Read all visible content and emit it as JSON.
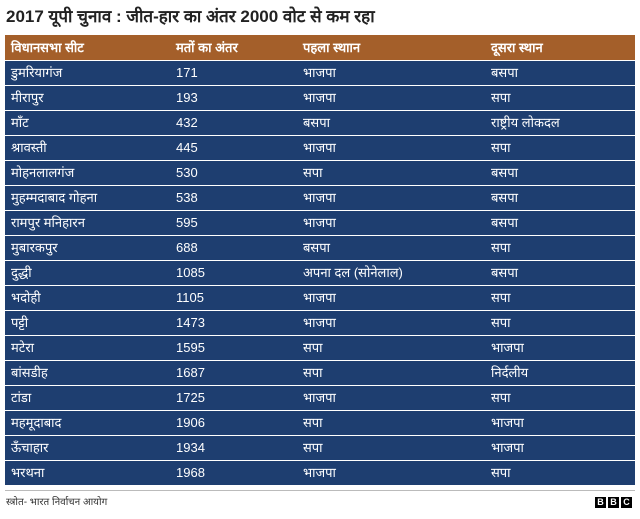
{
  "colors": {
    "header_bg": "#a45f2a",
    "row_bg": "#1e3e70",
    "text_on_table": "#ffffff",
    "title": "#222222"
  },
  "chart_data": {
    "type": "table",
    "title": "2017 यूपी चुनाव : जीत-हार का अंतर 2000 वोट से कम रहा",
    "columns": [
      "विधानसभा सीट",
      "मतों का अंतर",
      "पहला स्थाान",
      "दूसरा स्थान"
    ],
    "rows": [
      [
        "डुमरियागंज",
        171,
        "भाजपा",
        "बसपा"
      ],
      [
        "मीरापुर",
        193,
        "भाजपा",
        "सपा"
      ],
      [
        "माँट",
        432,
        "बसपा",
        "राष्ट्रीय लोकदल"
      ],
      [
        "श्रावस्ती",
        445,
        "भाजपा",
        "सपा"
      ],
      [
        "मोहनलालगंज",
        530,
        "सपा",
        "बसपा"
      ],
      [
        "मुहम्मदाबाद गोहना",
        538,
        "भाजपा",
        "बसपा"
      ],
      [
        "रामपुर मनिहारन",
        595,
        "भाजपा",
        "बसपा"
      ],
      [
        "मुबारकपुर",
        688,
        "बसपा",
        "सपा"
      ],
      [
        "दुद्धी",
        1085,
        "अपना दल (सोनेलाल)",
        "बसपा"
      ],
      [
        "भदोही",
        1105,
        "भाजपा",
        "सपा"
      ],
      [
        "पट्टी",
        1473,
        "भाजपा",
        "सपा"
      ],
      [
        "मटेरा",
        1595,
        "सपा",
        "भाजपा"
      ],
      [
        "बांसडीह",
        1687,
        "सपा",
        "निर्दलीय"
      ],
      [
        "टांडा",
        1725,
        "भाजपा",
        "सपा"
      ],
      [
        "महमूदाबाद",
        1906,
        "सपा",
        "भाजपा"
      ],
      [
        "ऊँचाहार",
        1934,
        "सपा",
        "भाजपा"
      ],
      [
        "भरथना",
        1968,
        "भाजपा",
        "सपा"
      ]
    ]
  },
  "footer": {
    "source": "स्त्रोत- भारत निर्वाचन आयोग",
    "logo": [
      "B",
      "B",
      "C"
    ]
  }
}
